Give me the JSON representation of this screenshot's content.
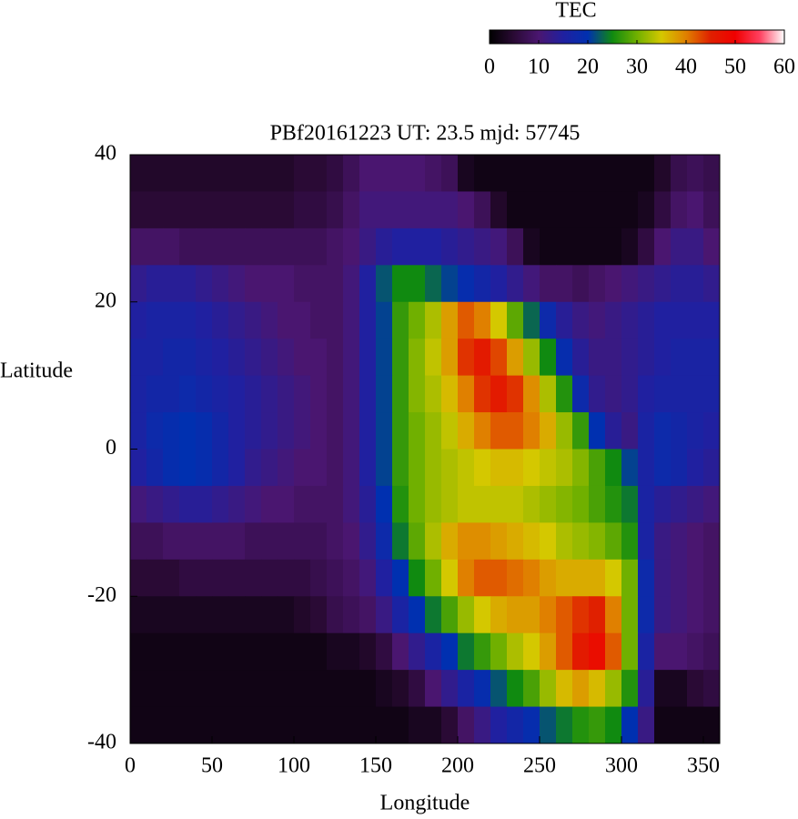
{
  "chart_data": {
    "type": "heatmap",
    "title": "PBf20161223  UT: 23.5  mjd: 57745",
    "xlabel": "Longitude",
    "ylabel": "Latitude",
    "xlim": [
      0,
      360
    ],
    "ylim": [
      -40,
      40
    ],
    "xticks": [
      0,
      50,
      100,
      150,
      200,
      250,
      300,
      350
    ],
    "yticks": [
      -40,
      -20,
      0,
      20,
      40
    ],
    "colorbar_label": "TEC",
    "clim": [
      0,
      60
    ],
    "cticks": [
      0,
      10,
      20,
      30,
      40,
      50,
      60
    ],
    "colorscale": [
      [
        0,
        "#000000"
      ],
      [
        5,
        "#2a0a35"
      ],
      [
        10,
        "#4a1670"
      ],
      [
        15,
        "#2020a0"
      ],
      [
        20,
        "#0030b0"
      ],
      [
        25,
        "#108a10"
      ],
      [
        30,
        "#70b000"
      ],
      [
        35,
        "#d4c800"
      ],
      [
        40,
        "#e08000"
      ],
      [
        45,
        "#e02000"
      ],
      [
        50,
        "#f00000"
      ],
      [
        55,
        "#ff4060"
      ],
      [
        60,
        "#ffffff"
      ]
    ],
    "x": [
      5,
      15,
      25,
      35,
      45,
      55,
      65,
      75,
      85,
      95,
      105,
      115,
      125,
      135,
      145,
      155,
      165,
      175,
      185,
      195,
      205,
      215,
      225,
      235,
      245,
      255,
      265,
      275,
      285,
      295,
      305,
      315,
      325,
      335,
      345,
      355
    ],
    "y": [
      37.5,
      32.5,
      27.5,
      22.5,
      17.5,
      12.5,
      7.5,
      2.5,
      -2.5,
      -7.5,
      -12.5,
      -17.5,
      -22.5,
      -27.5,
      -32.5,
      -37.5
    ],
    "z": [
      [
        4,
        4,
        4,
        4,
        4,
        4,
        4,
        4,
        4,
        4,
        5,
        5,
        6,
        8,
        10,
        10,
        10,
        10,
        9,
        8,
        3,
        2,
        2,
        2,
        2,
        2,
        2,
        2,
        2,
        2,
        2,
        2,
        4,
        7,
        8,
        7
      ],
      [
        5,
        5,
        5,
        5,
        5,
        5,
        5,
        5,
        5,
        5,
        6,
        6,
        7,
        9,
        11,
        11,
        11,
        11,
        11,
        11,
        10,
        8,
        4,
        2,
        2,
        2,
        2,
        2,
        2,
        2,
        2,
        3,
        6,
        9,
        10,
        8
      ],
      [
        9,
        9,
        9,
        8,
        8,
        8,
        8,
        8,
        8,
        8,
        8,
        8,
        9,
        10,
        12,
        14,
        15,
        15,
        15,
        14,
        13,
        12,
        11,
        8,
        3,
        2,
        2,
        2,
        2,
        2,
        3,
        6,
        10,
        12,
        12,
        10
      ],
      [
        13,
        14,
        14,
        14,
        13,
        12,
        11,
        10,
        10,
        10,
        9,
        9,
        9,
        11,
        15,
        22,
        25,
        25,
        23,
        21,
        19,
        17,
        15,
        13,
        11,
        9,
        9,
        8,
        9,
        10,
        11,
        12,
        13,
        14,
        14,
        13
      ],
      [
        15,
        16,
        16,
        16,
        15,
        14,
        13,
        12,
        11,
        10,
        10,
        9,
        9,
        11,
        15,
        21,
        27,
        30,
        33,
        38,
        42,
        40,
        35,
        29,
        23,
        18,
        14,
        12,
        11,
        12,
        13,
        14,
        15,
        15,
        15,
        15
      ],
      [
        16,
        16,
        17,
        17,
        16,
        15,
        14,
        13,
        12,
        11,
        10,
        10,
        9,
        11,
        15,
        21,
        27,
        31,
        34,
        38,
        44,
        46,
        43,
        38,
        32,
        25,
        19,
        14,
        12,
        12,
        13,
        14,
        15,
        16,
        16,
        16
      ],
      [
        16,
        17,
        17,
        18,
        17,
        16,
        15,
        14,
        13,
        12,
        11,
        10,
        9,
        11,
        15,
        21,
        27,
        31,
        33,
        36,
        40,
        44,
        46,
        44,
        39,
        33,
        26,
        18,
        13,
        12,
        13,
        15,
        16,
        16,
        16,
        16
      ],
      [
        16,
        18,
        19,
        20,
        19,
        17,
        15,
        14,
        13,
        12,
        11,
        10,
        9,
        11,
        15,
        21,
        27,
        30,
        32,
        34,
        37,
        40,
        42,
        42,
        40,
        37,
        32,
        27,
        20,
        14,
        12,
        16,
        18,
        17,
        16,
        15
      ],
      [
        15,
        17,
        19,
        20,
        19,
        17,
        15,
        13,
        12,
        11,
        10,
        10,
        9,
        11,
        15,
        21,
        27,
        30,
        32,
        33,
        34,
        35,
        36,
        36,
        35,
        34,
        33,
        31,
        28,
        25,
        21,
        16,
        18,
        17,
        15,
        14
      ],
      [
        11,
        12,
        13,
        14,
        14,
        13,
        12,
        11,
        10,
        10,
        9,
        9,
        9,
        11,
        14,
        20,
        26,
        30,
        32,
        33,
        34,
        34,
        34,
        34,
        33,
        32,
        31,
        30,
        28,
        26,
        24,
        16,
        14,
        13,
        12,
        11
      ],
      [
        8,
        8,
        9,
        9,
        9,
        9,
        9,
        8,
        8,
        8,
        8,
        8,
        9,
        10,
        13,
        18,
        24,
        29,
        33,
        37,
        39,
        39,
        38,
        37,
        36,
        35,
        33,
        32,
        31,
        29,
        26,
        16,
        12,
        11,
        10,
        9
      ],
      [
        5,
        5,
        5,
        6,
        6,
        6,
        6,
        6,
        6,
        6,
        6,
        7,
        8,
        9,
        11,
        15,
        20,
        25,
        30,
        35,
        40,
        42,
        42,
        41,
        40,
        38,
        37,
        37,
        37,
        35,
        30,
        18,
        12,
        11,
        10,
        9
      ],
      [
        3,
        3,
        3,
        3,
        3,
        3,
        3,
        3,
        3,
        3,
        4,
        5,
        7,
        8,
        9,
        12,
        16,
        20,
        24,
        28,
        32,
        35,
        37,
        38,
        38,
        40,
        42,
        44,
        45,
        40,
        30,
        18,
        12,
        11,
        10,
        9
      ],
      [
        2,
        2,
        2,
        2,
        2,
        2,
        2,
        2,
        2,
        2,
        2,
        2,
        3,
        3,
        4,
        6,
        10,
        13,
        16,
        20,
        24,
        27,
        30,
        33,
        35,
        38,
        42,
        46,
        48,
        42,
        30,
        16,
        10,
        10,
        9,
        8
      ],
      [
        2,
        2,
        2,
        2,
        2,
        2,
        2,
        2,
        2,
        2,
        2,
        2,
        2,
        2,
        2,
        3,
        4,
        6,
        10,
        13,
        16,
        19,
        22,
        25,
        28,
        32,
        36,
        38,
        36,
        32,
        26,
        14,
        3,
        3,
        5,
        6
      ],
      [
        2,
        2,
        2,
        2,
        2,
        2,
        2,
        2,
        2,
        2,
        2,
        2,
        2,
        2,
        2,
        2,
        2,
        3,
        3,
        5,
        9,
        12,
        15,
        17,
        19,
        22,
        24,
        26,
        27,
        25,
        20,
        12,
        2,
        2,
        2,
        2
      ]
    ]
  }
}
